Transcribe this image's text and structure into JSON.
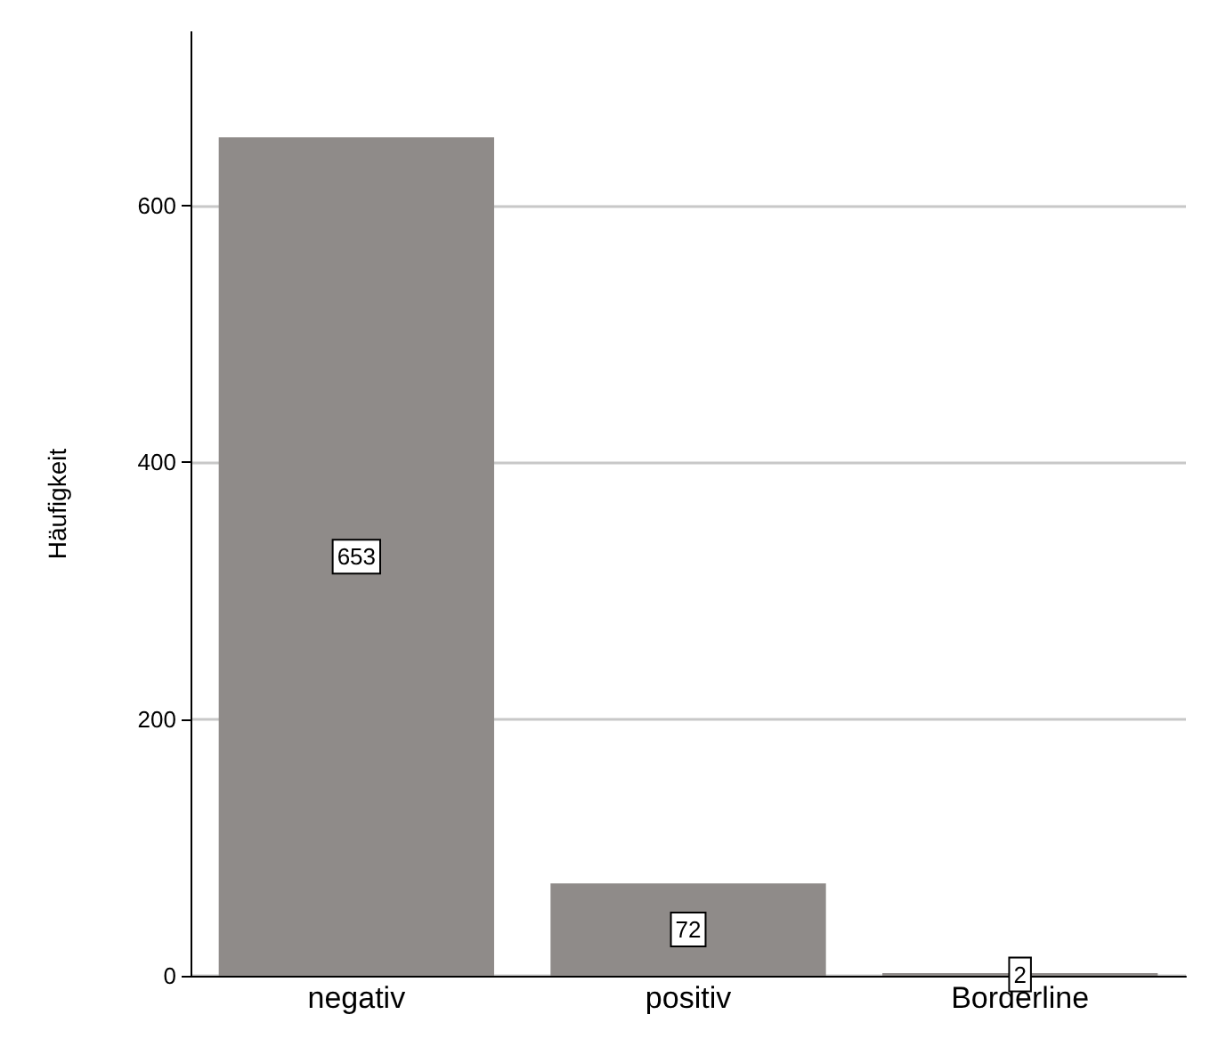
{
  "chart_data": {
    "type": "bar",
    "ylabel": "Häufigkeit",
    "categories": [
      "negativ",
      "positiv",
      "Borderline"
    ],
    "values": [
      653,
      72,
      2
    ],
    "color": "#8f8b89",
    "ylim": [
      0,
      735
    ],
    "yticks": [
      0,
      200,
      400,
      600
    ],
    "grid": "y",
    "data_labels": true
  }
}
